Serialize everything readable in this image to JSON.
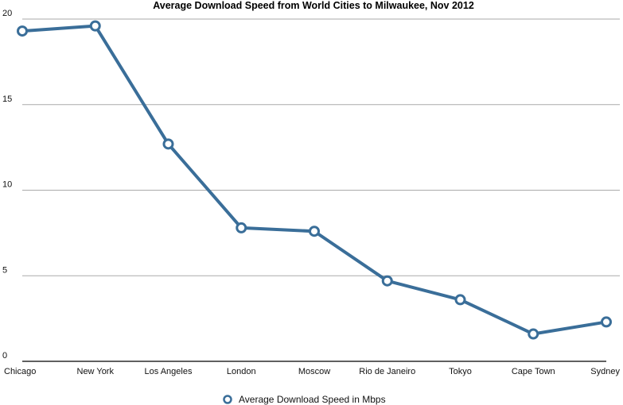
{
  "chart_data": {
    "type": "line",
    "title": "Average Download Speed from World Cities to Milwaukee, Nov 2012",
    "categories": [
      "Chicago",
      "New York",
      "Los Angeles",
      "London",
      "Moscow",
      "Rio de Janeiro",
      "Tokyo",
      "Cape Town",
      "Sydney"
    ],
    "series": [
      {
        "name": "Average Download Speed in Mbps",
        "values": [
          19.3,
          19.6,
          12.7,
          7.8,
          7.6,
          4.7,
          3.6,
          1.6,
          2.3
        ],
        "color": "#3a6e99"
      }
    ],
    "xlabel": "",
    "ylabel": "",
    "ylim": [
      0,
      20
    ],
    "yticks": [
      0,
      5,
      10,
      15,
      20
    ],
    "grid": true,
    "legend": "bottom-center"
  }
}
